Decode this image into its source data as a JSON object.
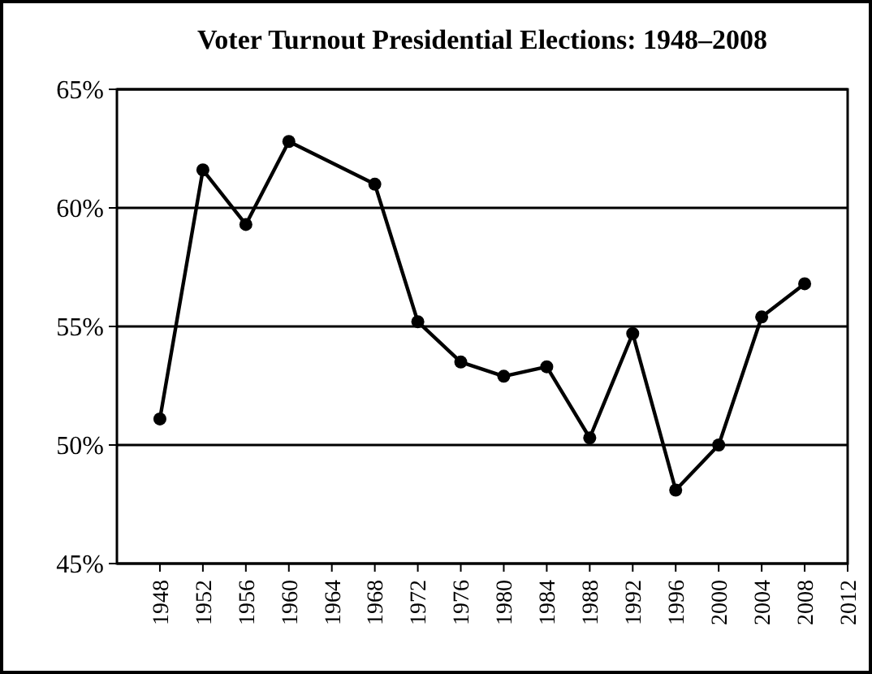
{
  "chart_data": {
    "type": "line",
    "title": "Voter Turnout Presidential Elections: 1948–2008",
    "x": [
      1948,
      1952,
      1956,
      1960,
      1968,
      1972,
      1976,
      1980,
      1984,
      1988,
      1992,
      1996,
      2000,
      2004,
      2008
    ],
    "series": [
      {
        "color": "#000000",
        "values": [
          51.1,
          61.6,
          59.3,
          62.8,
          61.0,
          55.2,
          53.5,
          52.9,
          53.3,
          50.3,
          54.7,
          48.1,
          50.0,
          55.4,
          56.8
        ]
      }
    ],
    "xlim": [
      1944,
      2012
    ],
    "xticks": [
      1948,
      1952,
      1956,
      1960,
      1964,
      1968,
      1972,
      1976,
      1980,
      1984,
      1988,
      1992,
      1996,
      2000,
      2004,
      2008,
      2012
    ],
    "ylim": [
      45,
      65
    ],
    "yticks": [
      {
        "value": 45,
        "label": "45%"
      },
      {
        "value": 50,
        "label": "50%"
      },
      {
        "value": 55,
        "label": "55%"
      },
      {
        "value": 60,
        "label": "60%"
      },
      {
        "value": 65,
        "label": "65%"
      }
    ],
    "grid": "y",
    "marker": "circle",
    "line_style": "solid"
  }
}
